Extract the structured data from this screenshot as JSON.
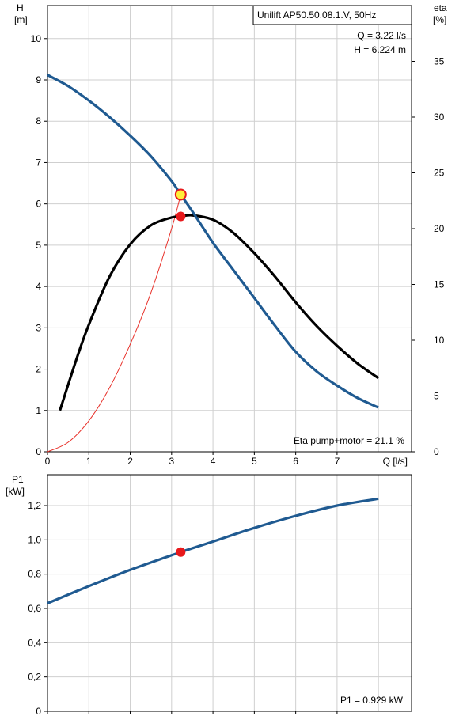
{
  "chart_data": [
    {
      "type": "line",
      "title": "Unilift AP50.50.08.1.V, 50Hz",
      "xlabel": "Q [l/s]",
      "ylabel": "H\n[m]",
      "ylabel_line1": "H",
      "ylabel_line2": "[m]",
      "y2label_line1": "eta",
      "y2label_line2": "[%]",
      "xlim": [
        0,
        8.8
      ],
      "ylim": [
        0,
        10.8
      ],
      "y2lim": [
        0,
        40
      ],
      "grid": true,
      "x_ticks": [
        0,
        1,
        2,
        3,
        4,
        5,
        6,
        7
      ],
      "x_tick_labels": [
        "0",
        "1",
        "2",
        "3",
        "4",
        "5",
        "6",
        "7"
      ],
      "y_ticks": [
        0,
        1,
        2,
        3,
        4,
        5,
        6,
        7,
        8,
        9,
        10
      ],
      "y_tick_labels": [
        "0",
        "1",
        "2",
        "3",
        "4",
        "5",
        "6",
        "7",
        "8",
        "9",
        "10"
      ],
      "y2_ticks": [
        0,
        5,
        10,
        15,
        20,
        25,
        30,
        35
      ],
      "y2_tick_labels": [
        "0",
        "5",
        "10",
        "15",
        "20",
        "25",
        "30",
        "35"
      ],
      "series": [
        {
          "color": "#1f5a91",
          "axis": "H",
          "x": [
            0,
            0.5,
            1,
            1.5,
            2,
            2.5,
            3,
            3.22,
            3.5,
            4,
            4.5,
            5,
            5.5,
            6,
            6.5,
            7,
            7.5,
            8.0
          ],
          "y": [
            9.12,
            8.85,
            8.5,
            8.1,
            7.65,
            7.15,
            6.55,
            6.224,
            5.82,
            5.06,
            4.39,
            3.72,
            3.05,
            2.42,
            1.95,
            1.6,
            1.3,
            1.07
          ]
        },
        {
          "color": "#000000",
          "axis": "eta",
          "x": [
            0.3,
            0.7,
            1.0,
            1.5,
            2.0,
            2.5,
            3.0,
            3.22,
            3.5,
            4.0,
            4.5,
            5.0,
            5.5,
            6.0,
            6.5,
            7.0,
            7.5,
            8.0
          ],
          "y": [
            3.7,
            8.3,
            11.4,
            15.7,
            18.6,
            20.3,
            21.0,
            21.1,
            21.2,
            20.8,
            19.6,
            17.8,
            15.7,
            13.4,
            11.3,
            9.5,
            7.9,
            6.6
          ]
        },
        {
          "color": "#e8312a",
          "axis": "H",
          "x": [
            0,
            0.5,
            1.0,
            1.5,
            2.0,
            2.5,
            3.0,
            3.22
          ],
          "y": [
            0,
            0.23,
            0.75,
            1.55,
            2.6,
            3.85,
            5.4,
            6.224
          ]
        }
      ],
      "operating_point": {
        "Q": 3.22,
        "H": 6.224,
        "eta": 21.1
      },
      "readout": {
        "q": "Q = 3.22 l/s",
        "h": "H = 6.224 m",
        "eta": "Eta pump+motor = 21.1 %"
      }
    },
    {
      "type": "line",
      "ylabel_line1": "P1",
      "ylabel_line2": "[kW]",
      "xlim": [
        0,
        8.8
      ],
      "ylim": [
        0,
        1.38
      ],
      "grid": true,
      "y_ticks": [
        0,
        0.2,
        0.4,
        0.6,
        0.8,
        1.0,
        1.2
      ],
      "y_tick_labels": [
        "0",
        "0,2",
        "0,4",
        "0,6",
        "0,8",
        "1,0",
        "1,2"
      ],
      "series": [
        {
          "color": "#1f5a91",
          "x": [
            0,
            1,
            2,
            3,
            3.22,
            4,
            5,
            6,
            7,
            8.0
          ],
          "y": [
            0.63,
            0.73,
            0.825,
            0.91,
            0.929,
            0.99,
            1.07,
            1.14,
            1.2,
            1.24
          ]
        }
      ],
      "operating_point": {
        "Q": 3.22,
        "P1": 0.929
      },
      "readout": {
        "p1": "P1 = 0.929 kW"
      }
    }
  ],
  "colors": {
    "grid": "#cfcfcf",
    "frame": "#000000",
    "h_curve": "#1f5a91",
    "eta_curve": "#000000",
    "system_curve": "#e8312a",
    "marker_fill": "#e8191c",
    "op_marker_fill": "#ffef3a",
    "op_marker_ring": "#e8191c"
  }
}
